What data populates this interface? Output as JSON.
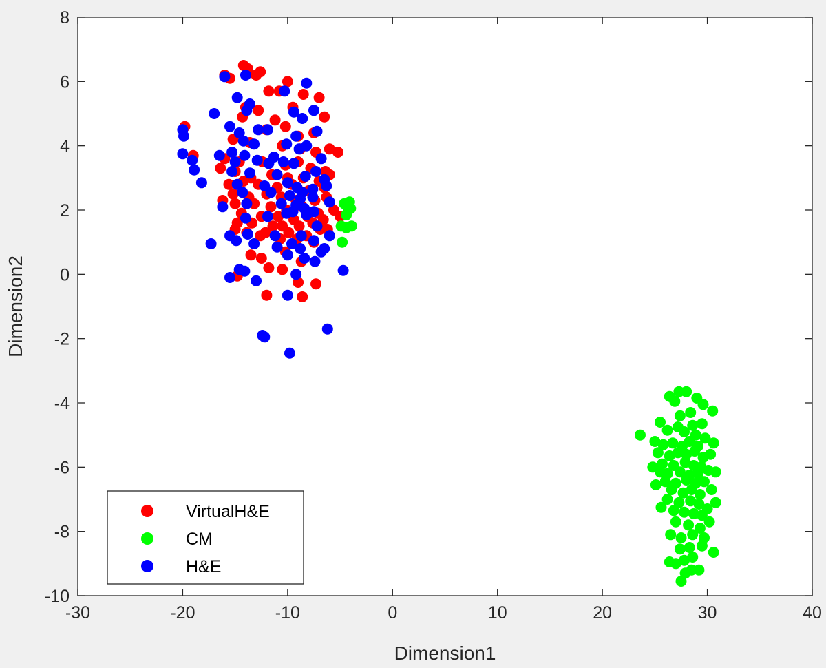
{
  "chart_data": {
    "type": "scatter",
    "title": "",
    "xlabel": "Dimension1",
    "ylabel": "Dimension2",
    "xlim": [
      -30,
      40
    ],
    "ylim": [
      -10,
      8
    ],
    "xticks": [
      -30,
      -20,
      -10,
      0,
      10,
      20,
      30,
      40
    ],
    "yticks": [
      -10,
      -8,
      -6,
      -4,
      -2,
      0,
      2,
      4,
      6,
      8
    ],
    "xtick_labels": [
      "-30",
      "-20",
      "-10",
      "0",
      "10",
      "20",
      "30",
      "40"
    ],
    "ytick_labels": [
      "-10",
      "-8",
      "-6",
      "-4",
      "-2",
      "0",
      "2",
      "4",
      "6",
      "8"
    ],
    "grid": false,
    "legend_position": "bottom-left",
    "series": [
      {
        "name": "VirtualH&E",
        "color": "#ff0000",
        "points": [
          [
            -14.2,
            6.5
          ],
          [
            -13.8,
            6.4
          ],
          [
            -12.6,
            6.3
          ],
          [
            -10.0,
            6.0
          ],
          [
            -16.0,
            6.2
          ],
          [
            -15.5,
            6.1
          ],
          [
            -13.0,
            6.2
          ],
          [
            -11.8,
            5.7
          ],
          [
            -10.8,
            5.7
          ],
          [
            -8.5,
            5.6
          ],
          [
            -7.0,
            5.5
          ],
          [
            -14.0,
            5.2
          ],
          [
            -12.8,
            5.1
          ],
          [
            -9.5,
            5.2
          ],
          [
            -6.5,
            4.9
          ],
          [
            -14.3,
            4.9
          ],
          [
            -11.2,
            4.8
          ],
          [
            -10.2,
            4.6
          ],
          [
            -12.0,
            4.5
          ],
          [
            -9.0,
            4.3
          ],
          [
            -7.5,
            4.4
          ],
          [
            -19.8,
            4.6
          ],
          [
            -15.2,
            4.2
          ],
          [
            -13.6,
            4.1
          ],
          [
            -10.5,
            4.0
          ],
          [
            -8.8,
            3.9
          ],
          [
            -7.3,
            3.8
          ],
          [
            -6.0,
            3.9
          ],
          [
            -5.2,
            3.8
          ],
          [
            -19.0,
            3.7
          ],
          [
            -16.0,
            3.6
          ],
          [
            -14.6,
            3.5
          ],
          [
            -12.4,
            3.5
          ],
          [
            -10.2,
            3.4
          ],
          [
            -9.0,
            3.5
          ],
          [
            -7.8,
            3.3
          ],
          [
            -6.4,
            3.2
          ],
          [
            -16.4,
            3.3
          ],
          [
            -15.0,
            3.2
          ],
          [
            -13.5,
            3.0
          ],
          [
            -11.5,
            3.1
          ],
          [
            -10.0,
            3.0
          ],
          [
            -8.5,
            3.0
          ],
          [
            -7.0,
            2.9
          ],
          [
            -6.0,
            3.1
          ],
          [
            -15.6,
            2.8
          ],
          [
            -14.2,
            2.9
          ],
          [
            -12.8,
            2.8
          ],
          [
            -11.0,
            2.7
          ],
          [
            -9.6,
            2.8
          ],
          [
            -8.0,
            2.6
          ],
          [
            -6.5,
            2.7
          ],
          [
            -15.2,
            2.5
          ],
          [
            -13.7,
            2.4
          ],
          [
            -12.0,
            2.5
          ],
          [
            -10.6,
            2.4
          ],
          [
            -9.2,
            2.3
          ],
          [
            -7.4,
            2.3
          ],
          [
            -6.3,
            2.4
          ],
          [
            -16.2,
            2.3
          ],
          [
            -15.0,
            2.2
          ],
          [
            -13.2,
            2.2
          ],
          [
            -11.6,
            2.1
          ],
          [
            -10.1,
            2.0
          ],
          [
            -8.6,
            2.1
          ],
          [
            -7.1,
            1.9
          ],
          [
            -5.6,
            2.0
          ],
          [
            -14.4,
            1.9
          ],
          [
            -12.5,
            1.8
          ],
          [
            -10.9,
            1.8
          ],
          [
            -9.4,
            1.7
          ],
          [
            -8.1,
            1.8
          ],
          [
            -6.6,
            1.7
          ],
          [
            -5.0,
            1.8
          ],
          [
            -14.8,
            1.6
          ],
          [
            -13.4,
            1.6
          ],
          [
            -11.4,
            1.5
          ],
          [
            -10.5,
            1.5
          ],
          [
            -8.9,
            1.5
          ],
          [
            -7.6,
            1.6
          ],
          [
            -6.2,
            1.4
          ],
          [
            -13.9,
            1.3
          ],
          [
            -12.1,
            1.3
          ],
          [
            -9.9,
            1.3
          ],
          [
            -8.2,
            1.2
          ],
          [
            -6.9,
            1.4
          ],
          [
            -15.0,
            1.4
          ],
          [
            -12.6,
            1.2
          ],
          [
            -10.7,
            1.1
          ],
          [
            -9.1,
            1.1
          ],
          [
            -7.5,
            1.0
          ],
          [
            -13.5,
            0.6
          ],
          [
            -12.5,
            0.5
          ],
          [
            -10.2,
            0.7
          ],
          [
            -8.7,
            0.4
          ],
          [
            -11.8,
            0.2
          ],
          [
            -10.5,
            0.15
          ],
          [
            -14.8,
            -0.05
          ],
          [
            -12.0,
            -0.65
          ],
          [
            -8.6,
            -0.7
          ],
          [
            -9.0,
            -0.25
          ],
          [
            -7.3,
            -0.3
          ]
        ]
      },
      {
        "name": "CM",
        "color": "#00ff00",
        "points": [
          [
            -4.6,
            2.2
          ],
          [
            -4.1,
            2.25
          ],
          [
            -4.0,
            2.05
          ],
          [
            -4.4,
            1.85
          ],
          [
            -4.9,
            1.5
          ],
          [
            -4.4,
            1.45
          ],
          [
            -3.9,
            1.5
          ],
          [
            -4.8,
            1.0
          ],
          [
            -4.2,
            2.0
          ],
          [
            28.0,
            -3.65
          ],
          [
            27.3,
            -3.65
          ],
          [
            26.4,
            -3.8
          ],
          [
            26.9,
            -3.95
          ],
          [
            29.0,
            -3.85
          ],
          [
            29.6,
            -4.05
          ],
          [
            30.5,
            -4.25
          ],
          [
            27.4,
            -4.4
          ],
          [
            28.4,
            -4.3
          ],
          [
            25.5,
            -4.6
          ],
          [
            27.2,
            -4.75
          ],
          [
            28.6,
            -4.7
          ],
          [
            29.5,
            -4.65
          ],
          [
            26.2,
            -4.85
          ],
          [
            27.8,
            -4.9
          ],
          [
            28.9,
            -5.0
          ],
          [
            29.8,
            -5.1
          ],
          [
            30.6,
            -5.25
          ],
          [
            23.6,
            -5.0
          ],
          [
            25.0,
            -5.2
          ],
          [
            25.8,
            -5.3
          ],
          [
            26.7,
            -5.25
          ],
          [
            27.6,
            -5.35
          ],
          [
            28.3,
            -5.2
          ],
          [
            29.1,
            -5.35
          ],
          [
            25.3,
            -5.55
          ],
          [
            26.4,
            -5.65
          ],
          [
            27.2,
            -5.55
          ],
          [
            28.0,
            -5.6
          ],
          [
            28.8,
            -5.5
          ],
          [
            29.6,
            -5.7
          ],
          [
            30.3,
            -5.6
          ],
          [
            25.7,
            -5.9
          ],
          [
            26.8,
            -5.95
          ],
          [
            27.9,
            -5.85
          ],
          [
            28.7,
            -5.95
          ],
          [
            29.4,
            -6.0
          ],
          [
            24.8,
            -6.0
          ],
          [
            25.5,
            -6.15
          ],
          [
            26.2,
            -6.2
          ],
          [
            27.4,
            -6.15
          ],
          [
            28.3,
            -6.25
          ],
          [
            29.1,
            -6.2
          ],
          [
            30.1,
            -6.1
          ],
          [
            30.8,
            -6.15
          ],
          [
            26.0,
            -6.45
          ],
          [
            27.0,
            -6.5
          ],
          [
            28.0,
            -6.4
          ],
          [
            28.9,
            -6.5
          ],
          [
            29.7,
            -6.45
          ],
          [
            25.1,
            -6.55
          ],
          [
            26.6,
            -6.7
          ],
          [
            27.7,
            -6.8
          ],
          [
            28.5,
            -6.7
          ],
          [
            29.3,
            -6.85
          ],
          [
            30.4,
            -6.7
          ],
          [
            26.2,
            -7.0
          ],
          [
            27.3,
            -7.1
          ],
          [
            28.4,
            -7.05
          ],
          [
            29.2,
            -7.15
          ],
          [
            30.0,
            -7.3
          ],
          [
            30.8,
            -7.1
          ],
          [
            25.6,
            -7.25
          ],
          [
            26.8,
            -7.35
          ],
          [
            27.8,
            -7.4
          ],
          [
            28.7,
            -7.45
          ],
          [
            29.5,
            -7.5
          ],
          [
            27.0,
            -7.7
          ],
          [
            28.2,
            -7.8
          ],
          [
            29.3,
            -7.9
          ],
          [
            30.2,
            -7.7
          ],
          [
            26.5,
            -8.1
          ],
          [
            27.5,
            -8.2
          ],
          [
            28.6,
            -8.1
          ],
          [
            29.7,
            -8.2
          ],
          [
            27.4,
            -8.55
          ],
          [
            28.3,
            -8.5
          ],
          [
            29.5,
            -8.45
          ],
          [
            30.6,
            -8.65
          ],
          [
            26.4,
            -8.95
          ],
          [
            27.0,
            -9.0
          ],
          [
            27.8,
            -8.9
          ],
          [
            28.6,
            -8.8
          ],
          [
            29.2,
            -9.2
          ],
          [
            27.9,
            -9.3
          ],
          [
            28.5,
            -9.2
          ],
          [
            27.5,
            -9.55
          ]
        ]
      },
      {
        "name": "H&E",
        "color": "#0000ff",
        "points": [
          [
            -8.2,
            5.95
          ],
          [
            -14.0,
            6.2
          ],
          [
            -16.0,
            6.15
          ],
          [
            -10.3,
            5.7
          ],
          [
            -14.8,
            5.5
          ],
          [
            -13.6,
            5.3
          ],
          [
            -13.9,
            5.1
          ],
          [
            -17.0,
            5.0
          ],
          [
            -9.4,
            5.05
          ],
          [
            -8.6,
            4.85
          ],
          [
            -7.5,
            5.1
          ],
          [
            -15.5,
            4.6
          ],
          [
            -11.9,
            4.5
          ],
          [
            -14.6,
            4.4
          ],
          [
            -12.8,
            4.5
          ],
          [
            -9.2,
            4.3
          ],
          [
            -7.2,
            4.45
          ],
          [
            -20.0,
            4.5
          ],
          [
            -19.9,
            4.3
          ],
          [
            -14.2,
            4.15
          ],
          [
            -13.2,
            4.05
          ],
          [
            -10.1,
            4.05
          ],
          [
            -8.9,
            3.9
          ],
          [
            -8.2,
            4.0
          ],
          [
            -15.3,
            3.8
          ],
          [
            -14.1,
            3.7
          ],
          [
            -11.3,
            3.65
          ],
          [
            -9.4,
            3.45
          ],
          [
            -20.0,
            3.75
          ],
          [
            -16.5,
            3.7
          ],
          [
            -19.1,
            3.55
          ],
          [
            -15.0,
            3.5
          ],
          [
            -12.9,
            3.55
          ],
          [
            -11.8,
            3.45
          ],
          [
            -10.4,
            3.5
          ],
          [
            -6.8,
            3.6
          ],
          [
            -18.9,
            3.25
          ],
          [
            -15.3,
            3.2
          ],
          [
            -13.6,
            3.15
          ],
          [
            -11.0,
            3.1
          ],
          [
            -8.3,
            3.05
          ],
          [
            -7.3,
            3.2
          ],
          [
            -6.5,
            2.95
          ],
          [
            -18.2,
            2.85
          ],
          [
            -14.8,
            2.8
          ],
          [
            -12.2,
            2.75
          ],
          [
            -10.0,
            2.85
          ],
          [
            -9.1,
            2.7
          ],
          [
            -8.6,
            2.55
          ],
          [
            -7.6,
            2.65
          ],
          [
            -6.3,
            2.75
          ],
          [
            -14.3,
            2.55
          ],
          [
            -11.6,
            2.55
          ],
          [
            -9.8,
            2.45
          ],
          [
            -8.8,
            2.35
          ],
          [
            -7.6,
            2.4
          ],
          [
            -16.2,
            2.1
          ],
          [
            -13.9,
            2.2
          ],
          [
            -10.6,
            2.2
          ],
          [
            -9.2,
            2.15
          ],
          [
            -8.4,
            2.05
          ],
          [
            -6.0,
            2.25
          ],
          [
            -10.1,
            1.9
          ],
          [
            -9.5,
            1.95
          ],
          [
            -8.2,
            1.85
          ],
          [
            -7.5,
            1.95
          ],
          [
            -14.0,
            1.75
          ],
          [
            -11.9,
            1.8
          ],
          [
            -7.2,
            1.5
          ],
          [
            -13.8,
            1.25
          ],
          [
            -11.2,
            1.2
          ],
          [
            -15.5,
            1.2
          ],
          [
            -8.7,
            1.2
          ],
          [
            -6.0,
            1.2
          ],
          [
            -17.3,
            0.95
          ],
          [
            -14.9,
            1.05
          ],
          [
            -13.2,
            0.95
          ],
          [
            -11.0,
            0.85
          ],
          [
            -9.6,
            0.95
          ],
          [
            -8.8,
            0.8
          ],
          [
            -7.5,
            1.05
          ],
          [
            -6.8,
            0.7
          ],
          [
            -10.0,
            0.6
          ],
          [
            -8.4,
            0.5
          ],
          [
            -7.4,
            0.4
          ],
          [
            -6.5,
            0.8
          ],
          [
            -14.6,
            0.15
          ],
          [
            -14.1,
            0.1
          ],
          [
            -9.2,
            0.0
          ],
          [
            -4.7,
            0.12
          ],
          [
            -15.5,
            -0.1
          ],
          [
            -13.0,
            -0.2
          ],
          [
            -10.0,
            -0.65
          ],
          [
            -12.4,
            -1.9
          ],
          [
            -12.2,
            -1.95
          ],
          [
            -6.2,
            -1.7
          ],
          [
            -9.8,
            -2.45
          ]
        ]
      }
    ]
  }
}
